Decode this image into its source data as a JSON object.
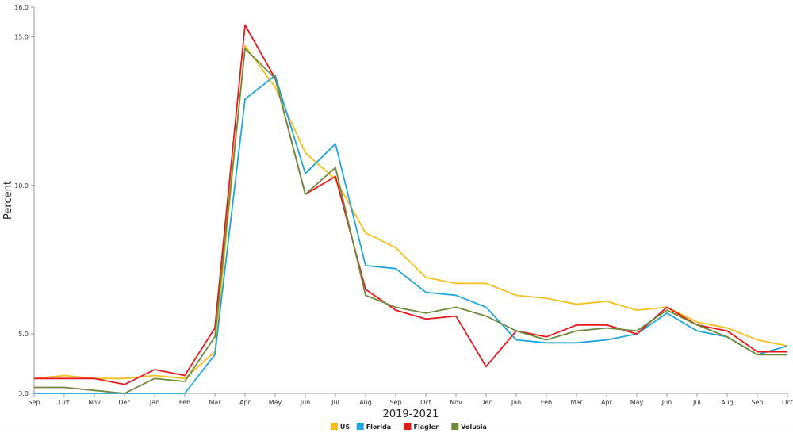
{
  "chart_data": {
    "type": "line",
    "xlabel": "2019-2021",
    "ylabel": "Percent",
    "ylim": [
      3.0,
      16.0
    ],
    "y_ticks": [
      "3.0",
      "5.0",
      "10.0",
      "15.0",
      "16.0"
    ],
    "y_tick_values": [
      3.0,
      5.0,
      10.0,
      15.0,
      16.0
    ],
    "grid": false,
    "legend_position": "bottom-center",
    "categories": [
      "Sep",
      "Oct",
      "Nov",
      "Dec",
      "Jan",
      "Feb",
      "Mar",
      "Apr",
      "May",
      "Jun",
      "Jul",
      "Aug",
      "Sep",
      "Oct",
      "Nov",
      "Dec",
      "Jan",
      "Feb",
      "Mar",
      "Apr",
      "May",
      "Jun",
      "Jul",
      "Aug",
      "Sep",
      "Oct"
    ],
    "series": [
      {
        "name": "US",
        "color": "#f5be1b",
        "values": [
          3.5,
          3.6,
          3.5,
          3.5,
          3.6,
          3.5,
          4.4,
          14.7,
          13.3,
          11.1,
          10.2,
          8.4,
          7.9,
          6.9,
          6.7,
          6.7,
          6.3,
          6.2,
          6.0,
          6.1,
          5.8,
          5.9,
          5.4,
          5.2,
          4.8,
          4.6
        ]
      },
      {
        "name": "Florida",
        "color": "#1ea5de",
        "values": [
          3.0,
          3.0,
          3.0,
          3.0,
          3.0,
          3.0,
          4.3,
          12.9,
          13.7,
          10.4,
          11.4,
          7.3,
          7.2,
          6.4,
          6.3,
          5.9,
          4.8,
          4.7,
          4.7,
          4.8,
          5.0,
          5.7,
          5.1,
          4.9,
          4.3,
          4.6
        ]
      },
      {
        "name": "Flagler",
        "color": "#e3191c",
        "values": [
          3.5,
          3.5,
          3.5,
          3.3,
          3.8,
          3.6,
          5.2,
          15.4,
          13.6,
          9.7,
          10.3,
          6.5,
          5.8,
          5.5,
          5.6,
          3.9,
          5.1,
          4.9,
          5.3,
          5.3,
          5.0,
          5.9,
          5.3,
          5.1,
          4.4,
          4.4
        ]
      },
      {
        "name": "Volusia",
        "color": "#6e8a3e",
        "values": [
          3.2,
          3.2,
          3.1,
          3.0,
          3.5,
          3.4,
          4.9,
          14.6,
          13.6,
          9.7,
          10.6,
          6.3,
          5.9,
          5.7,
          5.9,
          5.6,
          5.1,
          4.8,
          5.1,
          5.2,
          5.1,
          5.8,
          5.3,
          4.9,
          4.3,
          4.3
        ]
      }
    ]
  }
}
